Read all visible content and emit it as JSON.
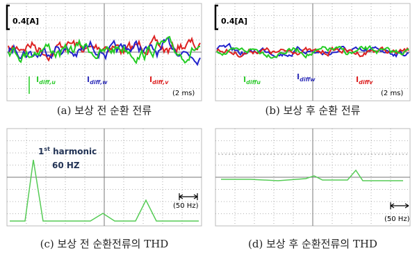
{
  "panels": [
    {
      "scale": "0.4[A]",
      "labels": [
        {
          "main": "I",
          "sub": "diff,u"
        },
        {
          "main": "I",
          "sub": "diff,w"
        },
        {
          "main": "I",
          "sub": "diff,v"
        }
      ],
      "time": "(2 ms)",
      "caption": "(a) 보상 전 순환 전류"
    },
    {
      "scale": "0.4[A]",
      "labels": [
        {
          "main": "I",
          "sub": "diffu"
        },
        {
          "main": "I",
          "sub": "diffw"
        },
        {
          "main": "I",
          "sub": "diffv"
        }
      ],
      "time": "(2 ms)",
      "caption": "(b) 보상 후 순환 전류"
    },
    {
      "annotation": {
        "prefix": "1",
        "sup": "st",
        "text": " harmonic",
        "freq": "60 HZ"
      },
      "scale_bar": "(50 Hz)",
      "caption": "(c) 보상 전 순환전류의 THD"
    },
    {
      "scale_bar": "(50 Hz)",
      "caption": "(d) 보상 후 순환전류의 THD"
    }
  ]
}
